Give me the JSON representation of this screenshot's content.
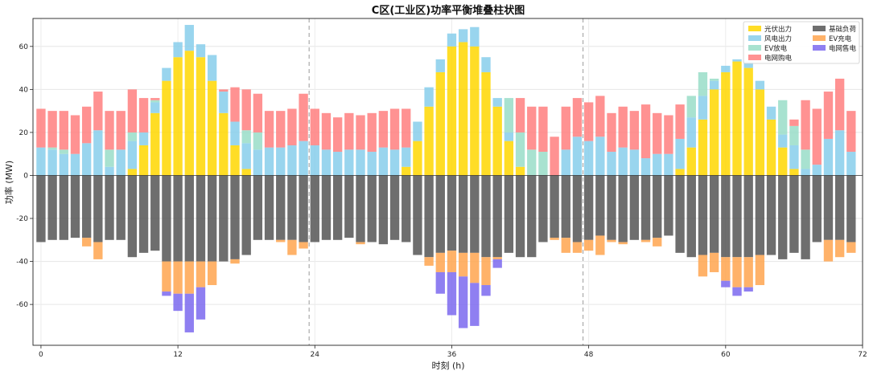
{
  "chart_data": {
    "type": "bar",
    "stacked": true,
    "title": "C区(工业区)功率平衡堆叠柱状图",
    "xlabel": "时刻 (h)",
    "ylabel": "功率 (MW)",
    "xlim": [
      -0.7,
      72
    ],
    "ylim": [
      -79,
      73
    ],
    "xticks": [
      0,
      12,
      24,
      36,
      48,
      60,
      72
    ],
    "yticks": [
      -60,
      -40,
      -20,
      0,
      20,
      40,
      60
    ],
    "grid": true,
    "vlines": [
      23.5,
      47.5
    ],
    "legend_position": "top-right",
    "legend_order": [
      "solar",
      "load",
      "wind",
      "ev_charge",
      "ev_discharge",
      "grid_sell",
      "grid_buy"
    ],
    "colors": {
      "solar": "#FFD700",
      "wind": "#87CEEB",
      "ev_discharge": "#99DDC8",
      "grid_buy": "#FF7F7F",
      "load": "#555555",
      "ev_charge": "#FFA54F",
      "grid_sell": "#7B68EE"
    },
    "series": [
      {
        "key": "solar",
        "name": "光伏出力",
        "values": [
          0,
          0,
          0,
          0,
          0,
          0,
          0,
          0,
          3,
          14,
          29,
          44,
          55,
          58,
          55,
          44,
          29,
          14,
          3,
          0,
          0,
          0,
          0,
          0,
          0,
          0,
          0,
          0,
          0,
          0,
          0,
          0,
          4,
          16,
          32,
          48,
          60,
          62,
          60,
          48,
          32,
          16,
          4,
          0,
          0,
          0,
          0,
          0,
          0,
          0,
          0,
          0,
          0,
          0,
          0,
          0,
          3,
          13,
          26,
          40,
          48,
          53,
          50,
          40,
          26,
          13,
          3,
          0,
          0,
          0,
          0,
          0
        ]
      },
      {
        "key": "wind",
        "name": "风电出力",
        "values": [
          13,
          12,
          10,
          10,
          15,
          21,
          4,
          12,
          13,
          6,
          5,
          6,
          7,
          12,
          6,
          12,
          10,
          11,
          12,
          12,
          13,
          13,
          14,
          16,
          14,
          12,
          11,
          12,
          12,
          11,
          13,
          12,
          9,
          9,
          9,
          6,
          6,
          6,
          9,
          7,
          4,
          4,
          0,
          0,
          0,
          0,
          12,
          18,
          16,
          18,
          11,
          13,
          12,
          8,
          10,
          10,
          14,
          14,
          11,
          4,
          3,
          1,
          3,
          4,
          6,
          6,
          11,
          3,
          5,
          17,
          21,
          11
        ]
      },
      {
        "key": "ev_discharge",
        "name": "EV放电",
        "values": [
          0,
          1,
          2,
          0,
          0,
          0,
          8,
          0,
          4,
          0,
          1,
          0,
          0,
          0,
          0,
          0,
          0,
          0,
          6,
          8,
          0,
          0,
          0,
          0,
          0,
          0,
          0,
          0,
          0,
          0,
          0,
          0,
          0,
          0,
          0,
          0,
          0,
          0,
          0,
          0,
          0,
          16,
          16,
          12,
          11,
          0,
          0,
          0,
          0,
          0,
          0,
          0,
          0,
          0,
          0,
          0,
          0,
          10,
          11,
          1,
          0,
          0,
          0,
          0,
          0,
          16,
          9,
          9,
          0,
          0,
          0,
          0
        ]
      },
      {
        "key": "grid_buy",
        "name": "电网购电",
        "values": [
          18,
          17,
          18,
          18,
          17,
          18,
          18,
          18,
          20,
          16,
          1,
          0,
          0,
          0,
          0,
          0,
          1,
          16,
          19,
          18,
          17,
          17,
          17,
          22,
          17,
          17,
          16,
          17,
          16,
          18,
          17,
          19,
          18,
          0,
          0,
          0,
          0,
          0,
          0,
          0,
          0,
          0,
          16,
          20,
          21,
          18,
          20,
          18,
          18,
          19,
          18,
          19,
          18,
          25,
          19,
          18,
          16,
          0,
          0,
          0,
          0,
          0,
          0,
          0,
          0,
          0,
          3,
          23,
          26,
          22,
          24,
          19
        ]
      },
      {
        "key": "load",
        "name": "基础负荷",
        "values": [
          -31,
          -30,
          -30,
          -29,
          -29,
          -31,
          -30,
          -30,
          -38,
          -36,
          -35,
          -40,
          -40,
          -40,
          -40,
          -40,
          -40,
          -39,
          -37,
          -30,
          -30,
          -30,
          -30,
          -31,
          -31,
          -30,
          -30,
          -29,
          -31,
          -31,
          -32,
          -30,
          -31,
          -37,
          -38,
          -36,
          -35,
          -36,
          -36,
          -38,
          -38,
          -36,
          -38,
          -38,
          -31,
          -29,
          -29,
          -31,
          -30,
          -28,
          -30,
          -31,
          -30,
          -30,
          -29,
          -28,
          -36,
          -38,
          -37,
          -36,
          -38,
          -38,
          -38,
          -37,
          -37,
          -39,
          -36,
          -39,
          -31,
          -30,
          -30,
          -31
        ]
      },
      {
        "key": "ev_charge",
        "name": "EV充电",
        "values": [
          0,
          0,
          0,
          0,
          -4,
          -8,
          0,
          0,
          0,
          0,
          0,
          -14,
          -15,
          -15,
          -12,
          -11,
          0,
          -2,
          0,
          0,
          0,
          -1,
          -7,
          -3,
          0,
          0,
          0,
          0,
          -1,
          0,
          0,
          0,
          0,
          0,
          -4,
          -9,
          -10,
          -11,
          -14,
          -13,
          -1,
          0,
          0,
          0,
          0,
          -1,
          -7,
          -5,
          -5,
          -9,
          -1,
          -1,
          0,
          -1,
          -4,
          0,
          0,
          0,
          -10,
          -9,
          -11,
          -14,
          -14,
          -14,
          0,
          0,
          0,
          0,
          0,
          -10,
          -8,
          -5
        ]
      },
      {
        "key": "grid_sell",
        "name": "电网售电",
        "values": [
          0,
          0,
          0,
          0,
          0,
          0,
          0,
          0,
          0,
          0,
          0,
          -2,
          -8,
          -18,
          -15,
          0,
          0,
          0,
          0,
          0,
          0,
          0,
          0,
          0,
          0,
          0,
          0,
          0,
          0,
          0,
          0,
          0,
          0,
          0,
          0,
          -10,
          -20,
          -24,
          -20,
          -5,
          -4,
          0,
          0,
          0,
          0,
          0,
          0,
          0,
          0,
          0,
          0,
          0,
          0,
          0,
          0,
          0,
          0,
          0,
          0,
          0,
          -3,
          -4,
          -2,
          0,
          0,
          0,
          0,
          0,
          0,
          0,
          0,
          0
        ]
      }
    ]
  }
}
